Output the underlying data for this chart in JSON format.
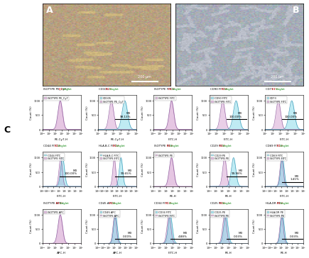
{
  "panel_A_color": "#c8a060",
  "panel_B_color": "#a0a8b0",
  "fig_bg": "#ffffff",
  "plot_bg": "#ffffff",
  "label_A": "A",
  "label_B": "B",
  "label_C": "C",
  "flow_plots": [
    {
      "row": 0,
      "col": 0,
      "title": "ISOTYPE PE_Cy7 / E1 / Singlet",
      "xlabel": "PE-Cy7-H",
      "legend": [
        "ISOTYPE PE_Cy7"
      ],
      "colors": [
        "#d4a0d0"
      ],
      "isotype_only": true,
      "gate": false,
      "gate_pct": "",
      "xrange": [
        -1,
        5
      ]
    },
    {
      "row": 0,
      "col": 1,
      "title": "CD105 / E1 / Singlet",
      "xlabel": "PE-Cy7-H",
      "legend": [
        "CD105",
        "ISOTYPE PE_Cy7"
      ],
      "colors": [
        "#80d8e8",
        "#d4a0d0"
      ],
      "isotype_only": false,
      "gate": true,
      "gate_pct": "98.13%",
      "xrange": [
        0,
        5
      ]
    },
    {
      "row": 0,
      "col": 2,
      "title": "ISOTYPE FITC / E1 / Singlet",
      "xlabel": "FITC-H",
      "legend": [
        "ISOTYPE FITC"
      ],
      "colors": [
        "#d4a0d0"
      ],
      "isotype_only": true,
      "gate": false,
      "gate_pct": "",
      "xrange": [
        -1,
        5
      ]
    },
    {
      "row": 0,
      "col": 3,
      "title": "CD90 FITC / E1 / Singlet",
      "xlabel": "FITC-H",
      "legend": [
        "CD90 FITC",
        "ISOTYPE FITC"
      ],
      "colors": [
        "#80d8e8",
        "#d4a0d0"
      ],
      "isotype_only": false,
      "gate": true,
      "gate_pct": "100.00%",
      "xrange": [
        0,
        5
      ]
    },
    {
      "row": 0,
      "col": 4,
      "title": "CD73 / E1 / Singlet",
      "xlabel": "FITC-H",
      "legend": [
        "CD73",
        "ISOTYPE FITC"
      ],
      "colors": [
        "#80d8e8",
        "#d4a0d0"
      ],
      "isotype_only": false,
      "gate": true,
      "gate_pct": "100.00%",
      "xrange": [
        0,
        5
      ]
    },
    {
      "row": 1,
      "col": 0,
      "title": "CD44 FITC / E1 / Singlet",
      "xlabel": "FITC-H",
      "legend": [
        "CD44 FITC",
        "ISOTYPE FITC"
      ],
      "colors": [
        "#80d8e8",
        "#d4a0d0"
      ],
      "isotype_only": false,
      "gate": true,
      "gate_pct": "100.00%",
      "xrange": [
        -3,
        4
      ]
    },
    {
      "row": 1,
      "col": 1,
      "title": "HLA-B-C FITC / E1 / Singlet",
      "xlabel": "FITC-H",
      "legend": [
        "HLA-B-C FITC",
        "ISOTYPE FITC"
      ],
      "colors": [
        "#80d8e8",
        "#d4a0d0"
      ],
      "isotype_only": false,
      "gate": true,
      "gate_pct": "99.65%",
      "xrange": [
        -2,
        6
      ]
    },
    {
      "row": 1,
      "col": 2,
      "title": "ISOTYPE PE / E1 / Singlet",
      "xlabel": "PE-H",
      "legend": [
        "ISOTYPE PE"
      ],
      "colors": [
        "#d4a0d0"
      ],
      "isotype_only": true,
      "gate": false,
      "gate_pct": "",
      "xrange": [
        -1,
        5
      ]
    },
    {
      "row": 1,
      "col": 3,
      "title": "CD29 PE / E1 / Singlet",
      "xlabel": "PE-H",
      "legend": [
        "CD29 PE",
        "ISOTYPE PE"
      ],
      "colors": [
        "#80d8e8",
        "#d4a0d0"
      ],
      "isotype_only": false,
      "gate": true,
      "gate_pct": "99.98%",
      "xrange": [
        -1,
        5
      ]
    },
    {
      "row": 1,
      "col": 4,
      "title": "CD69 FITC / E1 / Singlet",
      "xlabel": "FITC-H",
      "legend": [
        "CD69 FITC",
        "ISOTYPE FITC"
      ],
      "colors": [
        "#80d8e8",
        "#d4a0d0"
      ],
      "isotype_only": false,
      "gate": true,
      "gate_pct": "1.41%",
      "xrange": [
        -2,
        5
      ]
    },
    {
      "row": 2,
      "col": 0,
      "title": "ISOTYPE APC / E1 / Singlet",
      "xlabel": "APC-H",
      "legend": [
        "ISOTYPE APC"
      ],
      "colors": [
        "#d4a0d0"
      ],
      "isotype_only": true,
      "gate": false,
      "gate_pct": "",
      "xrange": [
        -1,
        5
      ]
    },
    {
      "row": 2,
      "col": 1,
      "title": "CD45 APC / E1 / Singlet",
      "xlabel": "APC-H",
      "legend": [
        "CD45 APC",
        "ISOTYPE APC"
      ],
      "colors": [
        "#80d8e8",
        "#d4a0d0"
      ],
      "isotype_only": false,
      "gate": true,
      "gate_pct": "0.00%",
      "xrange": [
        -2,
        5
      ]
    },
    {
      "row": 2,
      "col": 2,
      "title": "CD34 FITC / E1 / Singlet",
      "xlabel": "FITC-H",
      "legend": [
        "CD34 FITC",
        "ISOTYPE FITC"
      ],
      "colors": [
        "#80d8e8",
        "#d4a0d0"
      ],
      "isotype_only": false,
      "gate": true,
      "gate_pct": "4.88%",
      "xrange": [
        -1,
        5
      ]
    },
    {
      "row": 2,
      "col": 3,
      "title": "CD25 PE / E1 / Singlet",
      "xlabel": "PE-H",
      "legend": [
        "CD25 PE",
        "ISOTYPE PE"
      ],
      "colors": [
        "#80d8e8",
        "#d4a0d0"
      ],
      "isotype_only": false,
      "gate": true,
      "gate_pct": "0.03%",
      "xrange": [
        -1,
        5
      ]
    },
    {
      "row": 2,
      "col": 4,
      "title": "HLA-DR PE / E1 / Singlet",
      "xlabel": "PE-H",
      "legend": [
        "HLA-DR PE",
        "ISOTYPE PE"
      ],
      "colors": [
        "#80d8e8",
        "#d4a0d0"
      ],
      "isotype_only": false,
      "gate": true,
      "gate_pct": "0.03%",
      "xrange": [
        -2,
        5
      ]
    }
  ],
  "title_color_main": "#000000",
  "title_color_e1": "#ff0000",
  "title_color_singlet": "#00aa00",
  "legend_color_cyan": "#80d8e8",
  "legend_color_pink": "#d4a0d0"
}
